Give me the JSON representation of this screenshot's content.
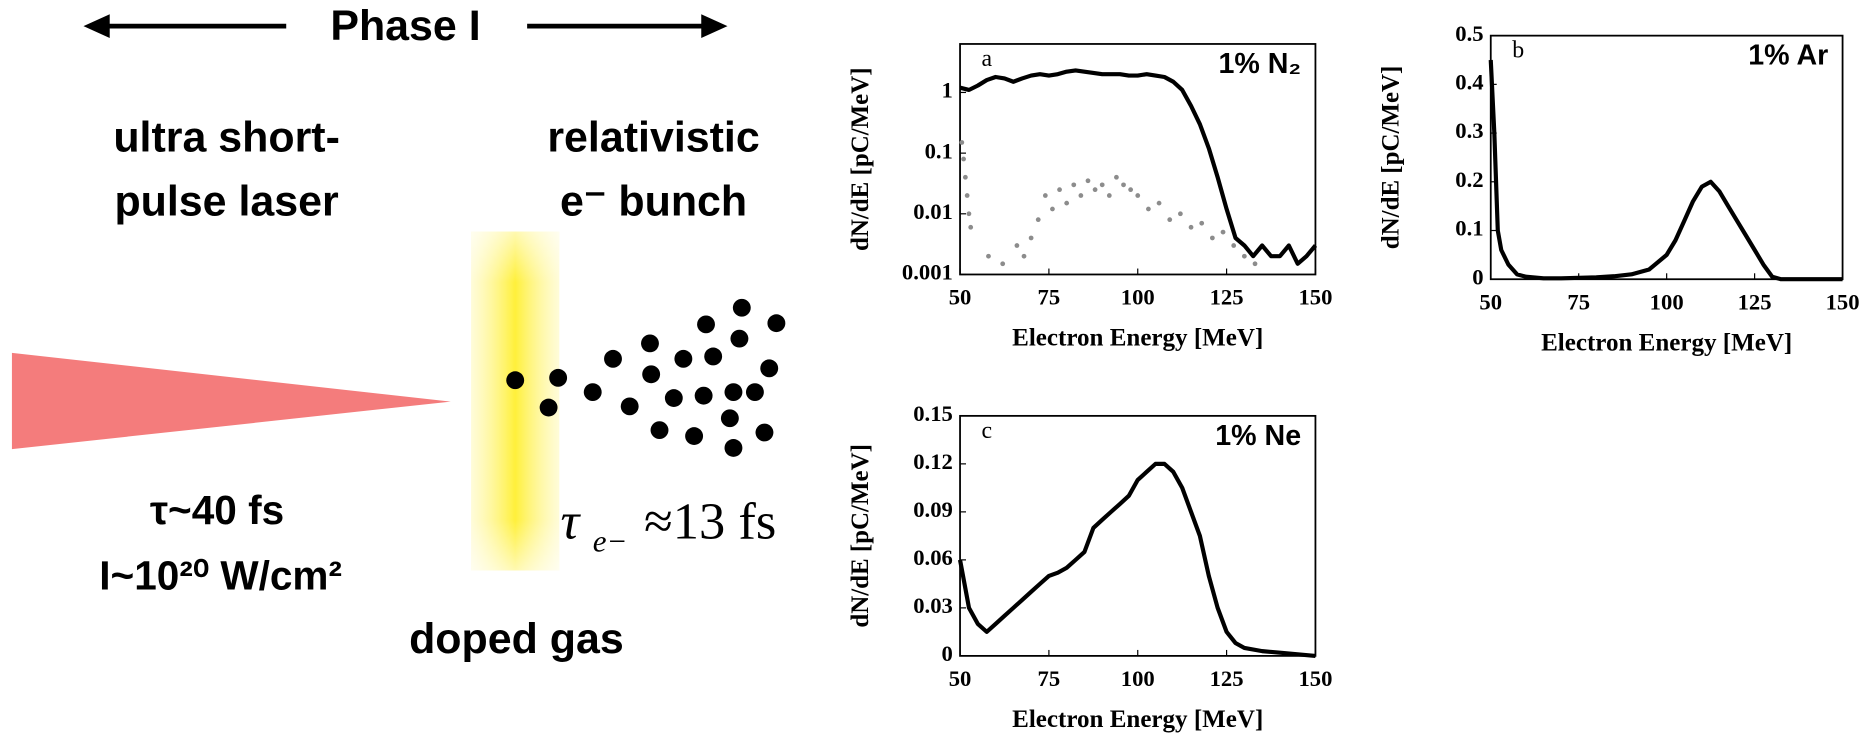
{
  "diagram": {
    "phase": "Phase I",
    "laser_label_1": "ultra short-",
    "laser_label_2": "pulse laser",
    "bunch_label_1": "relativistic",
    "bunch_label_2": "e⁻ bunch",
    "pulse_duration": "τ~40 fs",
    "intensity": "I~10²⁰ W/cm²",
    "tau": "τ",
    "tau_sub": "e−",
    "tau_value": "≈13 fs",
    "gas_label": "doped gas"
  },
  "chart_data": [
    {
      "type": "line",
      "panel": "a",
      "title": "1% N₂",
      "xlabel": "Electron Energy [MeV]",
      "ylabel": "dN/dE [pC/MeV]",
      "log_y": true,
      "xlim": [
        50,
        150
      ],
      "xticks": [
        50,
        75,
        100,
        125,
        150
      ],
      "ylim": [
        0.001,
        6.3
      ],
      "yticks": [
        0.001,
        0.01,
        0.1,
        1
      ],
      "series": [
        {
          "style": "line",
          "color": "#000000",
          "x": [
            50,
            52.5,
            55,
            57.5,
            60,
            62.5,
            65,
            67.5,
            70,
            72.5,
            75,
            77.5,
            80,
            82.5,
            85,
            87.5,
            90,
            92.5,
            95,
            97.5,
            100,
            102.5,
            105,
            107.5,
            110,
            112.5,
            115,
            117.5,
            120,
            122.5,
            125,
            127.5,
            130,
            132.5,
            135,
            137.5,
            140,
            142.5,
            145,
            147.5,
            150
          ],
          "values": [
            1.2,
            1.1,
            1.3,
            1.6,
            1.8,
            1.7,
            1.5,
            1.7,
            1.9,
            2.0,
            1.9,
            2.0,
            2.2,
            2.3,
            2.2,
            2.1,
            2.0,
            2.0,
            2.0,
            1.9,
            1.9,
            2.0,
            1.9,
            1.8,
            1.5,
            1.1,
            0.6,
            0.3,
            0.12,
            0.04,
            0.012,
            0.004,
            0.003,
            0.002,
            0.003,
            0.002,
            0.002,
            0.003,
            0.0015,
            0.002,
            0.003
          ]
        },
        {
          "style": "dots",
          "color": "#8c8c8c",
          "x": [
            50.5,
            51,
            51.5,
            52,
            52.5,
            53,
            58,
            62,
            66,
            68,
            70,
            72,
            74,
            76,
            78,
            80,
            82,
            84,
            86,
            88,
            90,
            92,
            94,
            96,
            98,
            100,
            103,
            106,
            109,
            112,
            115,
            118,
            121,
            124,
            127,
            130,
            133
          ],
          "values": [
            0.15,
            0.08,
            0.04,
            0.02,
            0.01,
            0.006,
            0.002,
            0.0015,
            0.003,
            0.002,
            0.004,
            0.008,
            0.02,
            0.012,
            0.025,
            0.015,
            0.03,
            0.02,
            0.035,
            0.025,
            0.03,
            0.02,
            0.04,
            0.03,
            0.025,
            0.02,
            0.012,
            0.015,
            0.008,
            0.01,
            0.006,
            0.007,
            0.004,
            0.005,
            0.003,
            0.002,
            0.0015
          ]
        }
      ]
    },
    {
      "type": "line",
      "panel": "b",
      "title": "1% Ar",
      "xlabel": "Electron Energy [MeV]",
      "ylabel": "dN/dE [pC/MeV]",
      "log_y": false,
      "xlim": [
        50,
        150
      ],
      "xticks": [
        50,
        75,
        100,
        125,
        150
      ],
      "ylim": [
        0,
        0.5
      ],
      "yticks": [
        0,
        0.1,
        0.2,
        0.3,
        0.4,
        0.5
      ],
      "series": [
        {
          "style": "line",
          "color": "#000000",
          "x": [
            50,
            51,
            52,
            53,
            55,
            57.5,
            60,
            65,
            70,
            75,
            80,
            85,
            90,
            95,
            100,
            102.5,
            105,
            107.5,
            110,
            112.5,
            115,
            117.5,
            120,
            122.5,
            125,
            127.5,
            130,
            132.5,
            135,
            140,
            145,
            150
          ],
          "values": [
            0.45,
            0.3,
            0.1,
            0.06,
            0.03,
            0.01,
            0.005,
            0.002,
            0.002,
            0.003,
            0.004,
            0.006,
            0.01,
            0.02,
            0.05,
            0.08,
            0.12,
            0.16,
            0.19,
            0.2,
            0.18,
            0.15,
            0.12,
            0.09,
            0.06,
            0.03,
            0.005,
            0,
            0,
            0,
            0,
            0
          ]
        }
      ]
    },
    {
      "type": "line",
      "panel": "c",
      "title": "1% Ne",
      "xlabel": "Electron Energy [MeV]",
      "ylabel": "dN/dE [pC/MeV]",
      "log_y": false,
      "xlim": [
        50,
        150
      ],
      "xticks": [
        50,
        75,
        100,
        125,
        150
      ],
      "ylim": [
        0,
        0.15
      ],
      "yticks": [
        0,
        0.03,
        0.06,
        0.09,
        0.12,
        0.15
      ],
      "series": [
        {
          "style": "line",
          "color": "#000000",
          "x": [
            50,
            52.5,
            55,
            57.5,
            60,
            62.5,
            65,
            67.5,
            70,
            72.5,
            75,
            77.5,
            80,
            82.5,
            85,
            87.5,
            90,
            92.5,
            95,
            97.5,
            100,
            102.5,
            105,
            107.5,
            110,
            112.5,
            115,
            117.5,
            120,
            122.5,
            125,
            127.5,
            130,
            135,
            140,
            145,
            150
          ],
          "values": [
            0.06,
            0.03,
            0.02,
            0.015,
            0.02,
            0.025,
            0.03,
            0.035,
            0.04,
            0.045,
            0.05,
            0.052,
            0.055,
            0.06,
            0.065,
            0.08,
            0.085,
            0.09,
            0.095,
            0.1,
            0.11,
            0.115,
            0.12,
            0.12,
            0.115,
            0.105,
            0.09,
            0.075,
            0.05,
            0.03,
            0.015,
            0.008,
            0.005,
            0.003,
            0.002,
            0.001,
            0
          ]
        }
      ]
    }
  ]
}
